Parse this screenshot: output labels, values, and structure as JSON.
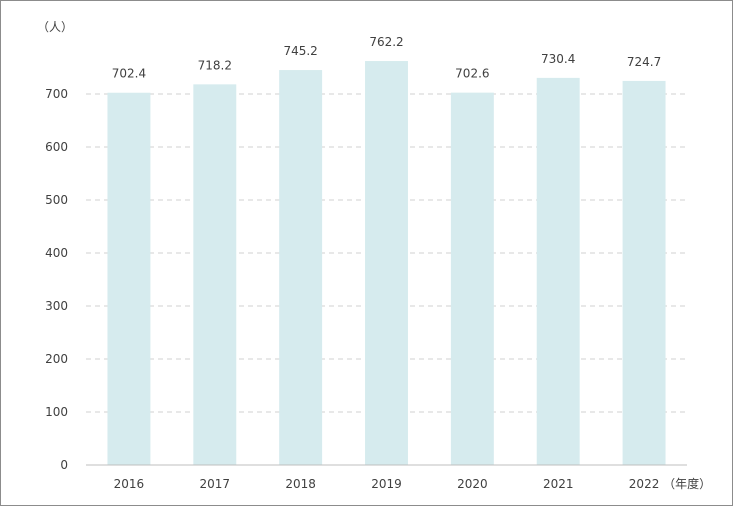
{
  "chart_data": {
    "type": "bar",
    "title": "",
    "ylabel": "（人）",
    "xlabel": "（年度）",
    "categories": [
      "2016",
      "2017",
      "2018",
      "2019",
      "2020",
      "2021",
      "2022"
    ],
    "values": [
      702.4,
      718.2,
      745.2,
      762.2,
      702.6,
      730.4,
      724.7
    ],
    "data_labels": [
      "702.4",
      "718.2",
      "745.2",
      "762.2",
      "702.6",
      "730.4",
      "724.7"
    ],
    "ylim": [
      0,
      800
    ],
    "yticks": [
      0,
      100,
      200,
      300,
      400,
      500,
      600,
      700
    ],
    "grid": true,
    "legend": "none",
    "colors": {
      "bar": "#d6ebee",
      "grid": "#d0d0d0",
      "axis": "#bfbfbf",
      "text": "#404040"
    }
  }
}
